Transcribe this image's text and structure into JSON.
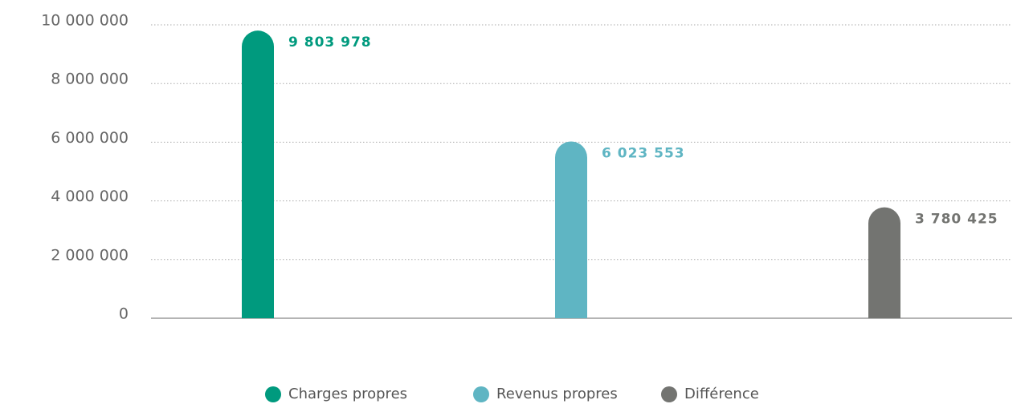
{
  "chart_data": {
    "type": "bar",
    "categories": [
      null
    ],
    "series": [
      {
        "name": "Charges propres",
        "color": "#009a7e",
        "values": [
          9803978
        ],
        "value_labels": [
          "9 803 978"
        ]
      },
      {
        "name": "Revenus propres",
        "color": "#5fb5c3",
        "values": [
          6023553
        ],
        "value_labels": [
          "6 023 553"
        ]
      },
      {
        "name": "Différence",
        "color": "#737471",
        "values": [
          3780425
        ],
        "value_labels": [
          "3 780 425"
        ]
      }
    ],
    "ylim": [
      0,
      10000000
    ],
    "yticks": [
      0,
      {
        "value": 2000000,
        "label": "2 000 000"
      },
      {
        "value": 4000000,
        "label": "4 000 000"
      },
      {
        "value": 6000000,
        "label": "6 000 000"
      },
      {
        "value": 8000000,
        "label": "8 000 000"
      },
      {
        "value": 10000000,
        "label": "10 000 000"
      }
    ],
    "grid": true,
    "legend": "bottom"
  }
}
